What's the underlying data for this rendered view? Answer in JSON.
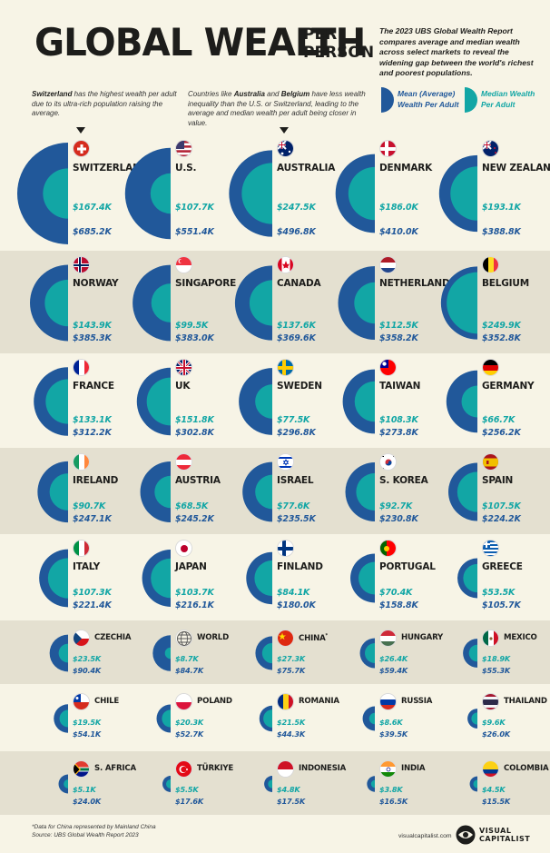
{
  "header": {
    "title_main": "GLOBAL WEALTH",
    "title_sub": "PER PERSON",
    "intro": "The 2023 UBS Global Wealth Report compares average and median wealth across select markets to reveal the widening gap between the world's richest and poorest populations."
  },
  "notes": {
    "note1_bold": "Switzerland",
    "note1_rest": " has the highest wealth per adult due to its ultra-rich population raising the average.",
    "note2_a": "Countries like ",
    "note2_b1": "Australia",
    "note2_and": " and ",
    "note2_b2": "Belgium",
    "note2_c": " have less wealth inequality than the U.S. or Switzerland, leading to the average and median wealth per adult being closer in value."
  },
  "legend": {
    "mean_label": "Mean (Average) Wealth Per Adult",
    "median_label": "Median Wealth Per Adult"
  },
  "colors": {
    "mean": "#21589a",
    "median": "#12a6a5",
    "band_alt": "#e4e0d0",
    "band_base": "#f7f4e6"
  },
  "chart_data": {
    "type": "semicircle-pairs",
    "series": [
      {
        "name": "Mean (Average) Wealth Per Adult"
      },
      {
        "name": "Median Wealth Per Adult"
      }
    ],
    "countries": [
      {
        "name": "SWITZERLAND",
        "flag": "switzerland",
        "median": 167.4,
        "mean": 685.2,
        "median_label": "$167.4K",
        "mean_label": "$685.2K"
      },
      {
        "name": "U.S.",
        "flag": "usa",
        "median": 107.7,
        "mean": 551.4,
        "median_label": "$107.7K",
        "mean_label": "$551.4K"
      },
      {
        "name": "AUSTRALIA",
        "flag": "australia",
        "median": 247.5,
        "mean": 496.8,
        "median_label": "$247.5K",
        "mean_label": "$496.8K"
      },
      {
        "name": "DENMARK",
        "flag": "denmark",
        "median": 186.0,
        "mean": 410.0,
        "median_label": "$186.0K",
        "mean_label": "$410.0K"
      },
      {
        "name": "NEW ZEALAND",
        "flag": "new-zealand",
        "median": 193.1,
        "mean": 388.8,
        "median_label": "$193.1K",
        "mean_label": "$388.8K"
      },
      {
        "name": "NORWAY",
        "flag": "norway",
        "median": 143.9,
        "mean": 385.3,
        "median_label": "$143.9K",
        "mean_label": "$385.3K"
      },
      {
        "name": "SINGAPORE",
        "flag": "singapore",
        "median": 99.5,
        "mean": 383.0,
        "median_label": "$99.5K",
        "mean_label": "$383.0K"
      },
      {
        "name": "CANADA",
        "flag": "canada",
        "median": 137.6,
        "mean": 369.6,
        "median_label": "$137.6K",
        "mean_label": "$369.6K"
      },
      {
        "name": "NETHERLANDS",
        "flag": "netherlands",
        "median": 112.5,
        "mean": 358.2,
        "median_label": "$112.5K",
        "mean_label": "$358.2K"
      },
      {
        "name": "BELGIUM",
        "flag": "belgium",
        "median": 249.9,
        "mean": 352.8,
        "median_label": "$249.9K",
        "mean_label": "$352.8K"
      },
      {
        "name": "FRANCE",
        "flag": "france",
        "median": 133.1,
        "mean": 312.2,
        "median_label": "$133.1K",
        "mean_label": "$312.2K"
      },
      {
        "name": "UK",
        "flag": "uk",
        "median": 151.8,
        "mean": 302.8,
        "median_label": "$151.8K",
        "mean_label": "$302.8K"
      },
      {
        "name": "SWEDEN",
        "flag": "sweden",
        "median": 77.5,
        "mean": 296.8,
        "median_label": "$77.5K",
        "mean_label": "$296.8K"
      },
      {
        "name": "TAIWAN",
        "flag": "taiwan",
        "median": 108.3,
        "mean": 273.8,
        "median_label": "$108.3K",
        "mean_label": "$273.8K"
      },
      {
        "name": "GERMANY",
        "flag": "germany",
        "median": 66.7,
        "mean": 256.2,
        "median_label": "$66.7K",
        "mean_label": "$256.2K"
      },
      {
        "name": "IRELAND",
        "flag": "ireland",
        "median": 90.7,
        "mean": 247.1,
        "median_label": "$90.7K",
        "mean_label": "$247.1K"
      },
      {
        "name": "AUSTRIA",
        "flag": "austria",
        "median": 68.5,
        "mean": 245.2,
        "median_label": "$68.5K",
        "mean_label": "$245.2K"
      },
      {
        "name": "ISRAEL",
        "flag": "israel",
        "median": 77.6,
        "mean": 235.5,
        "median_label": "$77.6K",
        "mean_label": "$235.5K"
      },
      {
        "name": "S. KOREA",
        "flag": "south-korea",
        "median": 92.7,
        "mean": 230.8,
        "median_label": "$92.7K",
        "mean_label": "$230.8K"
      },
      {
        "name": "SPAIN",
        "flag": "spain",
        "median": 107.5,
        "mean": 224.2,
        "median_label": "$107.5K",
        "mean_label": "$224.2K"
      },
      {
        "name": "ITALY",
        "flag": "italy",
        "median": 107.3,
        "mean": 221.4,
        "median_label": "$107.3K",
        "mean_label": "$221.4K"
      },
      {
        "name": "JAPAN",
        "flag": "japan",
        "median": 103.7,
        "mean": 216.1,
        "median_label": "$103.7K",
        "mean_label": "$216.1K"
      },
      {
        "name": "FINLAND",
        "flag": "finland",
        "median": 84.1,
        "mean": 180.0,
        "median_label": "$84.1K",
        "mean_label": "$180.0K"
      },
      {
        "name": "PORTUGAL",
        "flag": "portugal",
        "median": 70.4,
        "mean": 158.8,
        "median_label": "$70.4K",
        "mean_label": "$158.8K"
      },
      {
        "name": "GREECE",
        "flag": "greece",
        "median": 53.5,
        "mean": 105.7,
        "median_label": "$53.5K",
        "mean_label": "$105.7K"
      },
      {
        "name": "CZECHIA",
        "flag": "czechia",
        "median": 23.5,
        "mean": 90.4,
        "median_label": "$23.5K",
        "mean_label": "$90.4K"
      },
      {
        "name": "WORLD",
        "flag": "world",
        "median": 8.7,
        "mean": 84.7,
        "median_label": "$8.7K",
        "mean_label": "$84.7K"
      },
      {
        "name": "CHINA",
        "flag": "china",
        "footnote": "*",
        "median": 27.3,
        "mean": 75.7,
        "median_label": "$27.3K",
        "mean_label": "$75.7K"
      },
      {
        "name": "HUNGARY",
        "flag": "hungary",
        "median": 26.4,
        "mean": 59.4,
        "median_label": "$26.4K",
        "mean_label": "$59.4K"
      },
      {
        "name": "MEXICO",
        "flag": "mexico",
        "median": 18.9,
        "mean": 55.3,
        "median_label": "$18.9K",
        "mean_label": "$55.3K"
      },
      {
        "name": "CHILE",
        "flag": "chile",
        "median": 19.5,
        "mean": 54.1,
        "median_label": "$19.5K",
        "mean_label": "$54.1K"
      },
      {
        "name": "POLAND",
        "flag": "poland",
        "median": 20.3,
        "mean": 52.7,
        "median_label": "$20.3K",
        "mean_label": "$52.7K"
      },
      {
        "name": "ROMANIA",
        "flag": "romania",
        "median": 21.5,
        "mean": 44.3,
        "median_label": "$21.5K",
        "mean_label": "$44.3K"
      },
      {
        "name": "RUSSIA",
        "flag": "russia",
        "median": 8.6,
        "mean": 39.5,
        "median_label": "$8.6K",
        "mean_label": "$39.5K"
      },
      {
        "name": "THAILAND",
        "flag": "thailand",
        "median": 9.6,
        "mean": 26.0,
        "median_label": "$9.6K",
        "mean_label": "$26.0K"
      },
      {
        "name": "S. AFRICA",
        "flag": "south-africa",
        "median": 5.1,
        "mean": 24.0,
        "median_label": "$5.1K",
        "mean_label": "$24.0K"
      },
      {
        "name": "TÜRKIYE",
        "flag": "turkiye",
        "median": 5.5,
        "mean": 17.6,
        "median_label": "$5.5K",
        "mean_label": "$17.6K"
      },
      {
        "name": "INDONESIA",
        "flag": "indonesia",
        "median": 4.8,
        "mean": 17.5,
        "median_label": "$4.8K",
        "mean_label": "$17.5K"
      },
      {
        "name": "INDIA",
        "flag": "india",
        "median": 3.8,
        "mean": 16.5,
        "median_label": "$3.8K",
        "mean_label": "$16.5K"
      },
      {
        "name": "COLOMBIA",
        "flag": "colombia",
        "median": 4.5,
        "mean": 15.5,
        "median_label": "$4.5K",
        "mean_label": "$15.5K"
      }
    ]
  },
  "footer": {
    "note1": "*Data for China represented by Mainland China",
    "note2": "Source: UBS Global Wealth Report 2023",
    "url": "visualcapitalist.com",
    "brand_line1": "VISUAL",
    "brand_line2": "CAPITALIST"
  }
}
